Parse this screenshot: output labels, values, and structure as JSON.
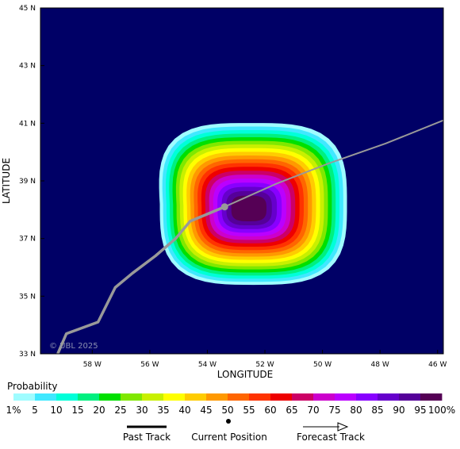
{
  "map": {
    "axes": {
      "x_label": "LONGITUDE",
      "y_label": "LATITUDE",
      "x_ticks": [
        "58 W",
        "56 W",
        "54 W",
        "52 W",
        "50 W",
        "48 W",
        "46 W"
      ],
      "y_ticks": [
        "45 N",
        "43 N",
        "41 N",
        "39 N",
        "37 N",
        "35 N",
        "33 N"
      ],
      "lon_range": [
        -59.8,
        -45.8
      ],
      "lat_range": [
        33,
        45
      ]
    },
    "watermark": "© UBL 2025",
    "colors": {
      "ocean": "#000066",
      "track": "#999999",
      "grid": "#3a3a8a"
    },
    "past_track_points": [
      [
        -59.2,
        33.0
      ],
      [
        -58.9,
        33.7
      ],
      [
        -57.8,
        34.1
      ],
      [
        -57.2,
        35.3
      ],
      [
        -56.6,
        35.8
      ],
      [
        -55.8,
        36.4
      ],
      [
        -55.1,
        37.0
      ],
      [
        -54.6,
        37.6
      ],
      [
        -53.4,
        38.1
      ]
    ],
    "current_position": [
      -53.4,
      38.1
    ],
    "forecast_track_points": [
      [
        -53.4,
        38.1
      ],
      [
        -51.6,
        38.9
      ],
      [
        -49.8,
        39.6
      ],
      [
        -47.8,
        40.3
      ],
      [
        -45.8,
        41.1
      ]
    ],
    "probability_field": {
      "center": [
        -52.4,
        38.2
      ],
      "levels": [
        1,
        5,
        10,
        15,
        20,
        25,
        30,
        35,
        40,
        45,
        50,
        55,
        60,
        65,
        70,
        75,
        80,
        85,
        90,
        95
      ]
    }
  },
  "legend": {
    "title": "Probability",
    "labels": [
      "1%",
      "5",
      "10",
      "15",
      "20",
      "25",
      "30",
      "35",
      "40",
      "45",
      "50",
      "55",
      "60",
      "65",
      "70",
      "75",
      "80",
      "85",
      "90",
      "95",
      "100%"
    ],
    "colors": [
      "#9ffcff",
      "#40e8ff",
      "#00ffd9",
      "#00f080",
      "#00e000",
      "#80e800",
      "#c8f000",
      "#ffff00",
      "#ffcc00",
      "#ff9900",
      "#ff6600",
      "#ff3300",
      "#ee0000",
      "#cc0066",
      "#cc00cc",
      "#bb00ff",
      "#8800ff",
      "#6600cc",
      "#550099",
      "#550055"
    ]
  },
  "key": {
    "past_track": "Past Track",
    "current_position": "Current Position",
    "forecast_track": "Forecast Track"
  }
}
